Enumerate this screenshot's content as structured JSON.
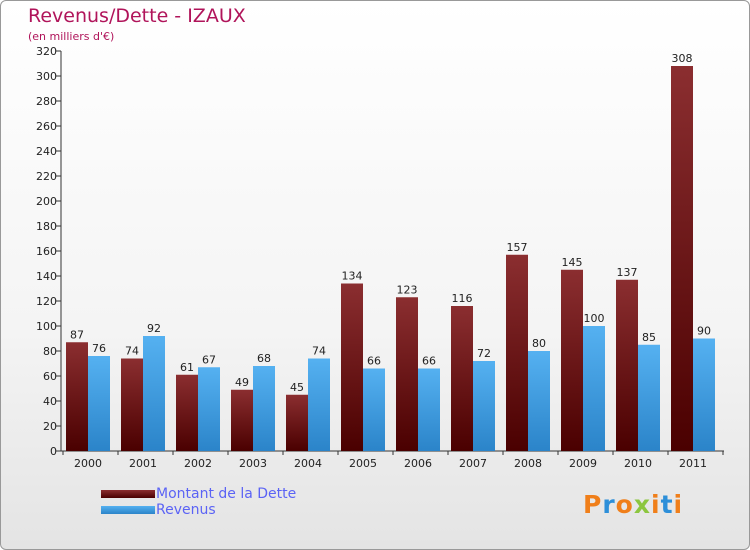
{
  "header": {
    "title": "Revenus/Dette - IZAUX",
    "subtitle": "(en milliers d'€)"
  },
  "legend": {
    "items": [
      {
        "label": "Montant de la Dette",
        "color": "#6e0c0c"
      },
      {
        "label": "Revenus",
        "color": "#3f9be5"
      }
    ]
  },
  "logo": {
    "letters": [
      "P",
      "r",
      "o",
      "x",
      "i",
      "t",
      "i"
    ],
    "colors": [
      "#f07f1a",
      "#2d8fd9",
      "#f07f1a",
      "#8cc63f",
      "#f07f1a",
      "#2d8fd9",
      "#f07f1a"
    ]
  },
  "colors": {
    "title": "#b0145a",
    "dette_top": "#8b2e30",
    "dette_bottom": "#4a0000",
    "revenus_top": "#55b1f1",
    "revenus_bottom": "#2b84c9",
    "legend_text": "#5b63f5"
  },
  "chart_data": {
    "type": "bar",
    "title": "Revenus/Dette - IZAUX",
    "ylabel": "(en milliers d'€)",
    "xlabel": "",
    "categories": [
      "2000",
      "2001",
      "2002",
      "2003",
      "2004",
      "2005",
      "2006",
      "2007",
      "2008",
      "2009",
      "2010",
      "2011"
    ],
    "series": [
      {
        "name": "Montant de la Dette",
        "values": [
          87,
          74,
          61,
          49,
          45,
          134,
          123,
          116,
          157,
          145,
          137,
          308
        ]
      },
      {
        "name": "Revenus",
        "values": [
          76,
          92,
          67,
          68,
          74,
          66,
          66,
          72,
          80,
          100,
          85,
          90
        ]
      }
    ],
    "ylim": [
      0,
      320
    ],
    "yticks": [
      0,
      20,
      40,
      60,
      80,
      100,
      120,
      140,
      160,
      180,
      200,
      220,
      240,
      260,
      280,
      300,
      320
    ],
    "grid": false,
    "legend_position": "bottom-left"
  }
}
